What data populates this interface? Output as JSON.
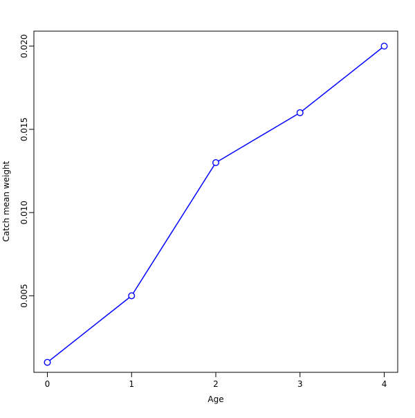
{
  "figure": {
    "background": "#ffffff",
    "axis_color": "#000000",
    "text_color": "#000000"
  },
  "chart_data": {
    "type": "line",
    "title": "",
    "xlabel": "Age",
    "ylabel": "Catch mean weight",
    "x": [
      0,
      1,
      2,
      3,
      4
    ],
    "series": [
      {
        "name": "Catch mean weight",
        "color": "#0000ff",
        "values": [
          0.001,
          0.005,
          0.013,
          0.016,
          0.02
        ]
      }
    ],
    "x_tick_values": [
      0,
      1,
      2,
      3,
      4
    ],
    "x_tick_labels": [
      "0",
      "1",
      "2",
      "3",
      "4"
    ],
    "y_tick_values": [
      0.005,
      0.01,
      0.015,
      0.02
    ],
    "y_tick_labels": [
      "0.005",
      "0.010",
      "0.015",
      "0.020"
    ],
    "xlim": [
      -0.16,
      4.16
    ],
    "ylim": [
      0.0004,
      0.0209
    ],
    "grid": false,
    "legend": "none",
    "marker": "open-circle",
    "marker_fill": "#ffffff",
    "line_color": "#0000ff"
  }
}
